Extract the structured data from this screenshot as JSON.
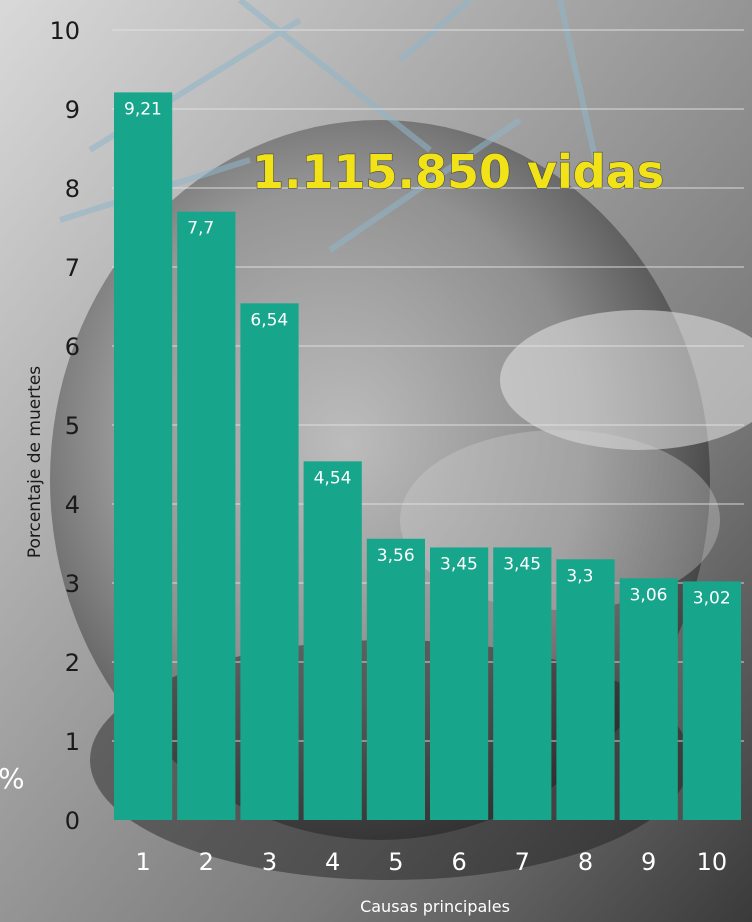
{
  "headline": "1.115.850 vidas",
  "edge_glyph": "%",
  "colors": {
    "bar": "#17a68c",
    "headline": "#f2e318"
  },
  "chart_data": {
    "type": "bar",
    "categories": [
      "1",
      "2",
      "3",
      "4",
      "5",
      "6",
      "7",
      "8",
      "9",
      "10"
    ],
    "values": [
      9.21,
      7.7,
      6.54,
      4.54,
      3.56,
      3.45,
      3.45,
      3.3,
      3.06,
      3.02
    ],
    "value_labels": [
      "9,21",
      "7,7",
      "6,54",
      "4,54",
      "3,56",
      "3,45",
      "3,45",
      "3,3",
      "3,06",
      "3,02"
    ],
    "title": "1.115.850 vidas",
    "xlabel": "Causas principales",
    "ylabel": "Porcentaje de muertes",
    "ylim": [
      0,
      10
    ],
    "yticks": [
      "0",
      "1",
      "2",
      "3",
      "4",
      "5",
      "6",
      "7",
      "8",
      "9",
      "10"
    ],
    "grid": true
  }
}
